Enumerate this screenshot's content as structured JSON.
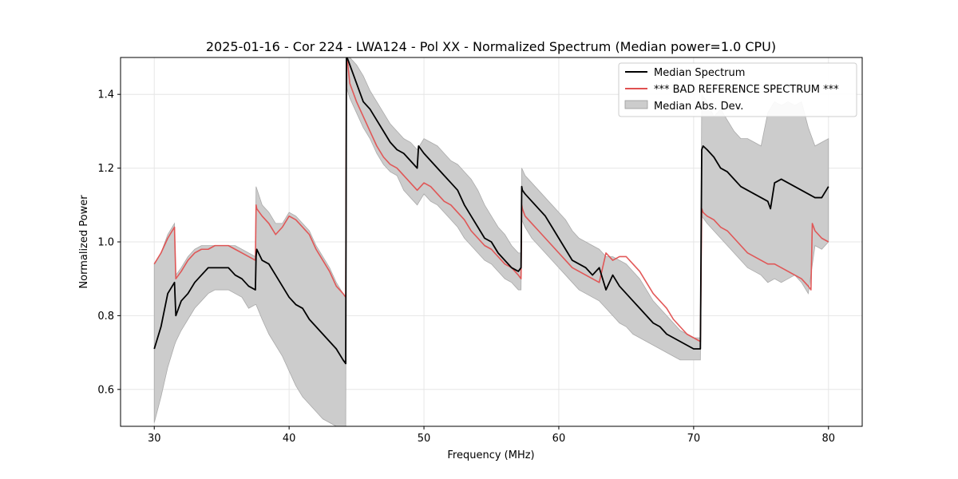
{
  "chart_data": {
    "type": "line",
    "title": "2025-01-16 - Cor 224 - LWA124 - Pol XX - Normalized Spectrum (Median power=1.0 CPU)",
    "xlabel": "Frequency (MHz)",
    "ylabel": "Normalized Power",
    "xlim": [
      27.5,
      82.5
    ],
    "ylim": [
      0.5,
      1.5
    ],
    "xticks": [
      30,
      40,
      50,
      60,
      70,
      80
    ],
    "xtick_labels": [
      "30",
      "40",
      "50",
      "60",
      "70",
      "80"
    ],
    "yticks": [
      0.6,
      0.8,
      1.0,
      1.2,
      1.4
    ],
    "ytick_labels": [
      "0.6",
      "0.8",
      "1.0",
      "1.2",
      "1.4"
    ],
    "grid": true,
    "legend_position": "top-right",
    "series": [
      {
        "name": "Median Spectrum",
        "color": "#000000",
        "x": [
          30.0,
          30.5,
          31.0,
          31.5,
          31.6,
          32.0,
          32.5,
          33.0,
          33.5,
          34.0,
          34.5,
          35.0,
          35.5,
          36.0,
          36.5,
          37.0,
          37.5,
          37.55,
          37.6,
          38.0,
          38.5,
          39.0,
          39.5,
          40.0,
          40.5,
          41.0,
          41.5,
          42.0,
          42.5,
          43.0,
          43.5,
          44.0,
          44.2,
          44.25,
          44.3,
          44.5,
          45.0,
          45.5,
          46.0,
          46.5,
          47.0,
          47.5,
          48.0,
          48.5,
          49.0,
          49.5,
          49.6,
          50.0,
          50.5,
          51.0,
          51.5,
          52.0,
          52.5,
          53.0,
          53.5,
          54.0,
          54.5,
          55.0,
          55.5,
          56.0,
          56.5,
          57.0,
          57.2,
          57.25,
          57.3,
          57.5,
          58.0,
          58.5,
          59.0,
          59.5,
          60.0,
          60.5,
          61.0,
          61.5,
          62.0,
          62.5,
          63.0,
          63.5,
          64.0,
          64.5,
          65.0,
          65.5,
          66.0,
          66.5,
          67.0,
          67.5,
          68.0,
          68.5,
          69.0,
          69.5,
          70.0,
          70.5,
          70.6,
          70.7,
          71.0,
          71.5,
          72.0,
          72.5,
          73.0,
          73.5,
          74.0,
          74.5,
          75.0,
          75.5,
          75.7,
          76.0,
          76.5,
          77.0,
          77.5,
          78.0,
          78.5,
          79.0,
          79.5,
          80.0
        ],
        "values": [
          0.71,
          0.77,
          0.86,
          0.89,
          0.8,
          0.84,
          0.86,
          0.89,
          0.91,
          0.93,
          0.93,
          0.93,
          0.93,
          0.91,
          0.9,
          0.88,
          0.87,
          0.96,
          0.98,
          0.95,
          0.94,
          0.91,
          0.88,
          0.85,
          0.83,
          0.82,
          0.79,
          0.77,
          0.75,
          0.73,
          0.71,
          0.68,
          0.67,
          1.5,
          1.5,
          1.48,
          1.43,
          1.38,
          1.36,
          1.33,
          1.3,
          1.27,
          1.25,
          1.24,
          1.22,
          1.2,
          1.26,
          1.24,
          1.22,
          1.2,
          1.18,
          1.16,
          1.14,
          1.1,
          1.07,
          1.04,
          1.01,
          1.0,
          0.97,
          0.95,
          0.93,
          0.92,
          0.93,
          1.15,
          1.14,
          1.13,
          1.11,
          1.09,
          1.07,
          1.04,
          1.01,
          0.98,
          0.95,
          0.94,
          0.93,
          0.91,
          0.93,
          0.87,
          0.91,
          0.88,
          0.86,
          0.84,
          0.82,
          0.8,
          0.78,
          0.77,
          0.75,
          0.74,
          0.73,
          0.72,
          0.71,
          0.71,
          1.25,
          1.26,
          1.25,
          1.23,
          1.2,
          1.19,
          1.17,
          1.15,
          1.14,
          1.13,
          1.12,
          1.11,
          1.09,
          1.16,
          1.17,
          1.16,
          1.15,
          1.14,
          1.13,
          1.12,
          1.12,
          1.15
        ]
      },
      {
        "name": "*** BAD REFERENCE SPECTRUM ***",
        "color": "#e05050",
        "x": [
          30.0,
          30.5,
          31.0,
          31.5,
          31.6,
          32.0,
          32.5,
          33.0,
          33.5,
          34.0,
          34.5,
          35.0,
          35.5,
          36.0,
          36.5,
          37.0,
          37.5,
          37.55,
          37.6,
          38.0,
          38.5,
          39.0,
          39.5,
          40.0,
          40.5,
          41.0,
          41.5,
          42.0,
          42.5,
          43.0,
          43.5,
          44.0,
          44.2,
          44.25,
          44.3,
          44.5,
          45.0,
          45.5,
          46.0,
          46.5,
          47.0,
          47.5,
          48.0,
          48.5,
          49.0,
          49.5,
          50.0,
          50.5,
          51.0,
          51.5,
          52.0,
          52.5,
          53.0,
          53.5,
          54.0,
          54.5,
          55.0,
          55.5,
          56.0,
          56.5,
          57.0,
          57.2,
          57.25,
          57.3,
          57.5,
          58.0,
          58.5,
          59.0,
          59.5,
          60.0,
          60.5,
          61.0,
          61.5,
          62.0,
          62.5,
          63.0,
          63.5,
          64.0,
          64.5,
          65.0,
          65.5,
          66.0,
          66.5,
          67.0,
          67.5,
          68.0,
          68.5,
          69.0,
          69.5,
          70.0,
          70.5,
          70.6,
          70.7,
          71.0,
          71.5,
          72.0,
          72.5,
          73.0,
          73.5,
          74.0,
          74.5,
          75.0,
          75.5,
          76.0,
          76.5,
          77.0,
          77.5,
          78.0,
          78.5,
          78.7,
          78.8,
          79.0,
          79.5,
          80.0
        ],
        "values": [
          0.94,
          0.97,
          1.01,
          1.04,
          0.9,
          0.92,
          0.95,
          0.97,
          0.98,
          0.98,
          0.99,
          0.99,
          0.99,
          0.98,
          0.97,
          0.96,
          0.95,
          1.1,
          1.09,
          1.07,
          1.05,
          1.02,
          1.04,
          1.07,
          1.06,
          1.04,
          1.02,
          0.98,
          0.95,
          0.92,
          0.88,
          0.86,
          0.85,
          1.5,
          1.5,
          1.43,
          1.38,
          1.34,
          1.3,
          1.26,
          1.23,
          1.21,
          1.2,
          1.18,
          1.16,
          1.14,
          1.16,
          1.15,
          1.13,
          1.11,
          1.1,
          1.08,
          1.06,
          1.03,
          1.01,
          0.99,
          0.98,
          0.96,
          0.94,
          0.93,
          0.91,
          0.9,
          1.1,
          1.09,
          1.07,
          1.05,
          1.03,
          1.01,
          0.99,
          0.97,
          0.95,
          0.93,
          0.92,
          0.91,
          0.9,
          0.89,
          0.97,
          0.95,
          0.96,
          0.96,
          0.94,
          0.92,
          0.89,
          0.86,
          0.84,
          0.82,
          0.79,
          0.77,
          0.75,
          0.74,
          0.73,
          1.09,
          1.08,
          1.07,
          1.06,
          1.04,
          1.03,
          1.01,
          0.99,
          0.97,
          0.96,
          0.95,
          0.94,
          0.94,
          0.93,
          0.92,
          0.91,
          0.9,
          0.88,
          0.87,
          1.05,
          1.03,
          1.01,
          1.0
        ]
      }
    ],
    "band": {
      "name": "Median Abs. Dev.",
      "color": "#cccccc",
      "x": [
        30.0,
        30.5,
        31.0,
        31.5,
        31.6,
        32.0,
        32.5,
        33.0,
        33.5,
        34.0,
        34.5,
        35.0,
        35.5,
        36.0,
        36.5,
        37.0,
        37.5,
        37.55,
        38.0,
        38.5,
        39.0,
        39.5,
        40.0,
        40.5,
        41.0,
        41.5,
        42.0,
        42.5,
        43.0,
        43.5,
        44.0,
        44.2,
        44.25,
        44.5,
        45.0,
        45.5,
        46.0,
        46.5,
        47.0,
        47.5,
        48.0,
        48.5,
        49.0,
        49.5,
        50.0,
        50.5,
        51.0,
        51.5,
        52.0,
        52.5,
        53.0,
        53.5,
        54.0,
        54.5,
        55.0,
        55.5,
        56.0,
        56.5,
        57.0,
        57.2,
        57.25,
        57.5,
        58.0,
        58.5,
        59.0,
        59.5,
        60.0,
        60.5,
        61.0,
        61.5,
        62.0,
        62.5,
        63.0,
        63.5,
        64.0,
        64.5,
        65.0,
        65.5,
        66.0,
        66.5,
        67.0,
        67.5,
        68.0,
        68.5,
        69.0,
        69.5,
        70.0,
        70.5,
        70.6,
        71.0,
        71.5,
        72.0,
        72.5,
        73.0,
        73.5,
        74.0,
        74.5,
        75.0,
        75.5,
        76.0,
        76.5,
        77.0,
        77.5,
        78.0,
        78.5,
        79.0,
        79.5,
        80.0
      ],
      "upper": [
        0.94,
        0.97,
        1.02,
        1.05,
        0.91,
        0.93,
        0.96,
        0.98,
        0.99,
        0.99,
        0.99,
        0.99,
        0.99,
        0.99,
        0.98,
        0.97,
        0.96,
        1.15,
        1.1,
        1.08,
        1.05,
        1.05,
        1.08,
        1.07,
        1.05,
        1.03,
        0.99,
        0.96,
        0.93,
        0.89,
        0.86,
        0.85,
        1.5,
        1.5,
        1.48,
        1.45,
        1.41,
        1.38,
        1.35,
        1.32,
        1.3,
        1.28,
        1.27,
        1.25,
        1.28,
        1.27,
        1.26,
        1.24,
        1.22,
        1.21,
        1.19,
        1.17,
        1.14,
        1.1,
        1.07,
        1.04,
        1.02,
        0.99,
        0.97,
        0.97,
        1.2,
        1.18,
        1.16,
        1.14,
        1.12,
        1.1,
        1.08,
        1.06,
        1.03,
        1.01,
        1.0,
        0.99,
        0.98,
        0.96,
        0.96,
        0.95,
        0.94,
        0.92,
        0.9,
        0.87,
        0.84,
        0.82,
        0.8,
        0.78,
        0.76,
        0.75,
        0.74,
        0.74,
        1.4,
        1.38,
        1.34,
        1.36,
        1.33,
        1.3,
        1.28,
        1.28,
        1.27,
        1.26,
        1.35,
        1.38,
        1.37,
        1.38,
        1.37,
        1.38,
        1.31,
        1.26,
        1.27,
        1.28
      ],
      "lower": [
        0.51,
        0.58,
        0.66,
        0.72,
        0.73,
        0.76,
        0.79,
        0.82,
        0.84,
        0.86,
        0.87,
        0.87,
        0.87,
        0.86,
        0.85,
        0.82,
        0.83,
        0.83,
        0.79,
        0.75,
        0.72,
        0.69,
        0.65,
        0.61,
        0.58,
        0.56,
        0.54,
        0.52,
        0.51,
        0.5,
        0.48,
        0.47,
        1.42,
        1.39,
        1.35,
        1.31,
        1.28,
        1.24,
        1.21,
        1.19,
        1.18,
        1.14,
        1.12,
        1.1,
        1.13,
        1.11,
        1.1,
        1.08,
        1.06,
        1.04,
        1.01,
        0.99,
        0.97,
        0.95,
        0.94,
        0.92,
        0.9,
        0.89,
        0.87,
        0.87,
        1.06,
        1.04,
        1.01,
        0.99,
        0.97,
        0.95,
        0.93,
        0.91,
        0.89,
        0.87,
        0.86,
        0.85,
        0.84,
        0.82,
        0.8,
        0.78,
        0.77,
        0.75,
        0.74,
        0.73,
        0.72,
        0.71,
        0.7,
        0.69,
        0.68,
        0.68,
        0.68,
        0.68,
        1.07,
        1.05,
        1.03,
        1.01,
        0.99,
        0.97,
        0.95,
        0.93,
        0.92,
        0.91,
        0.89,
        0.9,
        0.89,
        0.9,
        0.91,
        0.89,
        0.86,
        0.99,
        0.98,
        1.0
      ]
    }
  }
}
